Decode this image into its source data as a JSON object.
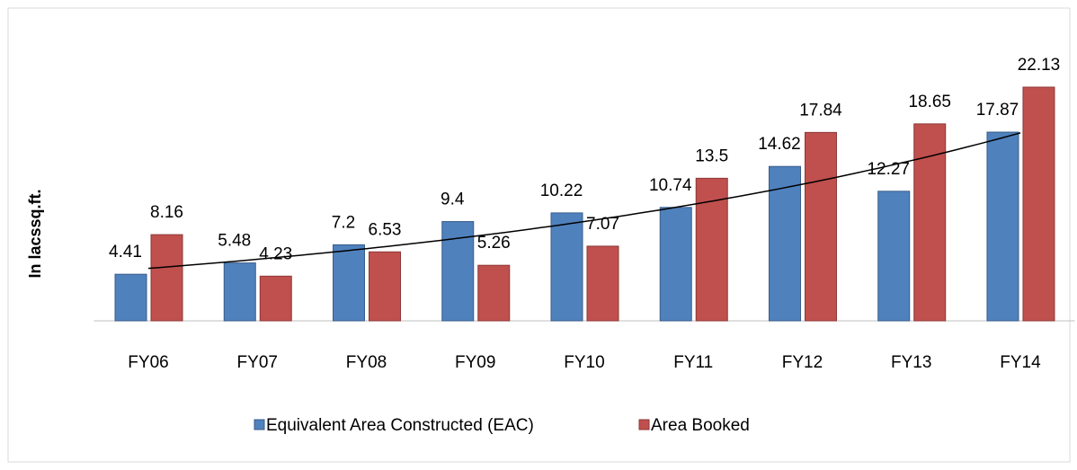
{
  "chart_data": {
    "type": "bar",
    "y_label": "In lacssq.ft.",
    "categories": [
      "FY06",
      "FY07",
      "FY08",
      "FY09",
      "FY10",
      "FY11",
      "FY12",
      "FY13",
      "FY14"
    ],
    "series": [
      {
        "name": "Equivalent Area Constructed (EAC)",
        "color": "#4f81bd",
        "values": [
          4.41,
          5.48,
          7.2,
          9.4,
          10.22,
          10.74,
          14.62,
          12.27,
          17.87
        ]
      },
      {
        "name": "Area Booked",
        "color": "#c0504d",
        "values": [
          8.16,
          4.23,
          6.53,
          5.26,
          7.07,
          13.5,
          17.84,
          18.65,
          22.13
        ]
      }
    ],
    "ylim": [
      0,
      24
    ],
    "trendline": true,
    "legend": "bottom"
  }
}
